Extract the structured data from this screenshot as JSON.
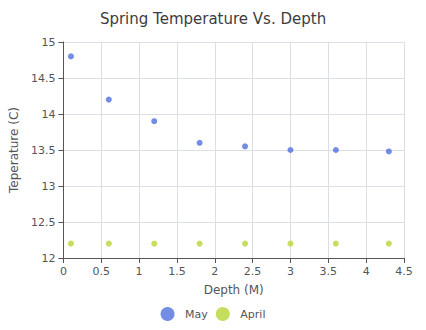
{
  "chart_data": {
    "type": "scatter",
    "title": "Spring Temperature Vs. Depth",
    "xlabel": "Depth (M)",
    "ylabel": "Teperature (C)",
    "series": [
      {
        "name": "May",
        "x": [
          0.1,
          0.6,
          1.2,
          1.8,
          2.4,
          3.0,
          3.6,
          4.3
        ],
        "values": [
          14.8,
          14.2,
          13.9,
          13.6,
          13.55,
          13.5,
          13.5,
          13.48
        ]
      },
      {
        "name": "April",
        "x": [
          0.1,
          0.6,
          1.2,
          1.8,
          2.4,
          3.0,
          3.6,
          4.3
        ],
        "values": [
          12.2,
          12.2,
          12.2,
          12.2,
          12.2,
          12.2,
          12.2,
          12.2
        ]
      }
    ],
    "xlim": [
      0,
      4.5
    ],
    "ylim": [
      12,
      15
    ],
    "xticks": [
      0,
      0.5,
      1,
      1.5,
      2,
      2.5,
      3,
      3.5,
      4,
      4.5
    ],
    "yticks": [
      12,
      12.5,
      13,
      13.5,
      14,
      14.5,
      15
    ],
    "grid": true,
    "legend": "bottom"
  }
}
